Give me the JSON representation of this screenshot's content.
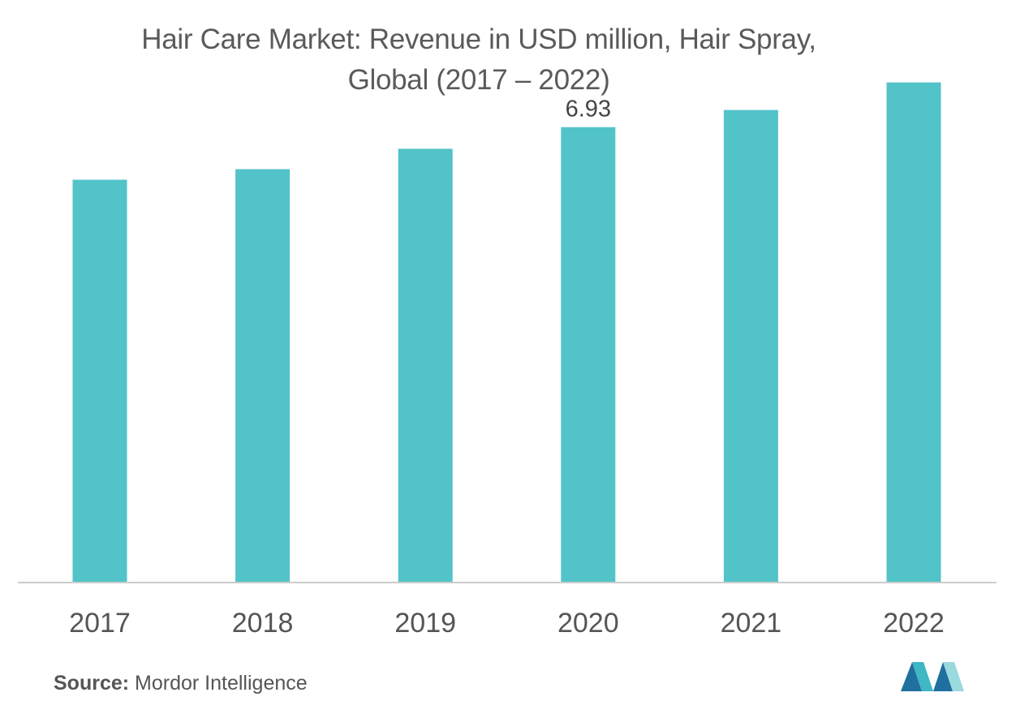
{
  "header": {
    "title_line1": "Hair Care Market: Revenue in USD million, Hair Spray,",
    "title_line2": "Global (2017 – 2022)"
  },
  "chart_data": {
    "type": "bar",
    "title": "Hair Care Market: Revenue in USD million, Hair Spray, Global (2017 – 2022)",
    "categories": [
      "2017",
      "2018",
      "2019",
      "2020",
      "2021",
      "2022"
    ],
    "values": [
      6.13,
      6.29,
      6.6,
      6.93,
      7.19,
      7.61
    ],
    "data_labels": [
      null,
      null,
      null,
      "6.93",
      null,
      null
    ],
    "xlabel": "",
    "ylabel": "",
    "ylim": [
      0,
      8
    ],
    "bar_color": "#52c3c8",
    "axis_color": "#cccccc",
    "grid": false,
    "legend": "none"
  },
  "footer": {
    "source_label": "Source:",
    "source_value": "Mordor Intelligence"
  },
  "logo": {
    "icon": "mordor-intelligence-logo",
    "colors": [
      "#1f6f9f",
      "#3fb7c4",
      "#9ad9de"
    ]
  }
}
